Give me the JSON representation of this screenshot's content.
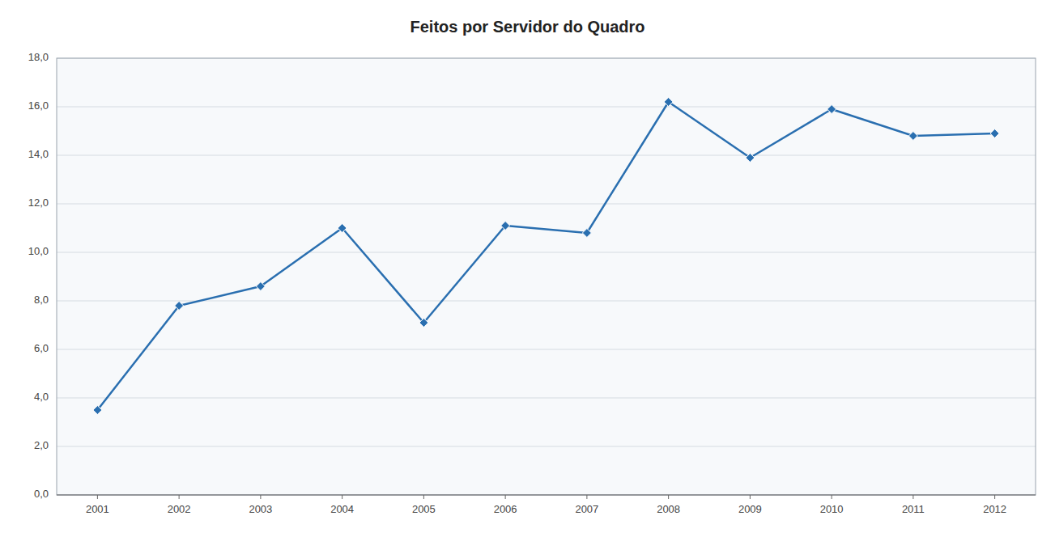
{
  "chart_data": {
    "type": "line",
    "title": "Feitos por Servidor do Quadro",
    "x": [
      2001,
      2002,
      2003,
      2004,
      2005,
      2006,
      2007,
      2008,
      2009,
      2010,
      2011,
      2012
    ],
    "values": [
      3.5,
      7.8,
      8.6,
      11.0,
      7.1,
      11.1,
      10.8,
      16.2,
      13.9,
      15.9,
      14.8,
      14.9
    ],
    "xlim": [
      2000.5,
      2012.5
    ],
    "xticks": [
      2001,
      2002,
      2003,
      2004,
      2005,
      2006,
      2007,
      2008,
      2009,
      2010,
      2011,
      2012
    ],
    "ylim": [
      0,
      18
    ],
    "yticks": [
      {
        "value": 0,
        "label": "0,0"
      },
      {
        "value": 2,
        "label": "2,0"
      },
      {
        "value": 4,
        "label": "4,0"
      },
      {
        "value": 6,
        "label": "6,0"
      },
      {
        "value": 8,
        "label": "8,0"
      },
      {
        "value": 10,
        "label": "10,0"
      },
      {
        "value": 12,
        "label": "12,0"
      },
      {
        "value": 14,
        "label": "14,0"
      },
      {
        "value": 16,
        "label": "16,0"
      },
      {
        "value": 18,
        "label": "18,0"
      }
    ],
    "grid": true,
    "marker": "diamond",
    "color": "#2a6fb0"
  }
}
